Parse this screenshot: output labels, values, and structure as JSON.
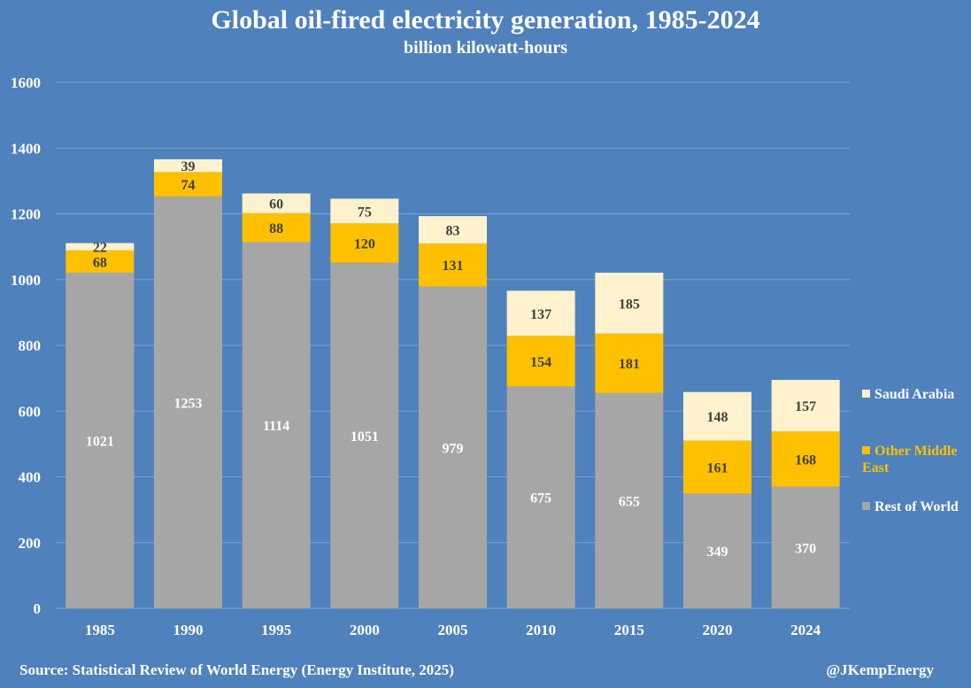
{
  "footer": {
    "source": "Source: Statistical Review of World Energy (Energy Institute, 2025)",
    "credit": "@JKempEnergy"
  },
  "chart_data": {
    "type": "bar",
    "stacked": true,
    "title": "Global oil-fired electricity generation, 1985-2024",
    "subtitle": "billion kilowatt-hours",
    "xlabel": "",
    "ylabel": "",
    "ylim": [
      0,
      1600
    ],
    "yticks": [
      0,
      200,
      400,
      600,
      800,
      1000,
      1200,
      1400,
      1600
    ],
    "grid": true,
    "legend_position": "right",
    "categories": [
      "1985",
      "1990",
      "1995",
      "2000",
      "2005",
      "2010",
      "2015",
      "2020",
      "2024"
    ],
    "series": [
      {
        "name": "Rest of World",
        "color": "#a6a6a6",
        "label_color": "#ffffff",
        "values": [
          1021,
          1253,
          1114,
          1051,
          979,
          675,
          655,
          349,
          370
        ]
      },
      {
        "name": "Other Middle East",
        "color": "#ffc000",
        "label_color": "#404040",
        "values": [
          68,
          74,
          88,
          120,
          131,
          154,
          181,
          161,
          168
        ]
      },
      {
        "name": "Saudi Arabia",
        "color": "#fff2cc",
        "label_color": "#404040",
        "values": [
          22,
          39,
          60,
          75,
          83,
          137,
          185,
          148,
          157
        ]
      }
    ],
    "legend": [
      {
        "label": "Saudi Arabia",
        "color": "#fff2cc",
        "text_color": "#ffffff"
      },
      {
        "label": "Other Middle East",
        "color": "#ffc000",
        "text_color": "#ffc000"
      },
      {
        "label": "Rest of World",
        "color": "#a6a6a6",
        "text_color": "#ffffff"
      }
    ]
  }
}
